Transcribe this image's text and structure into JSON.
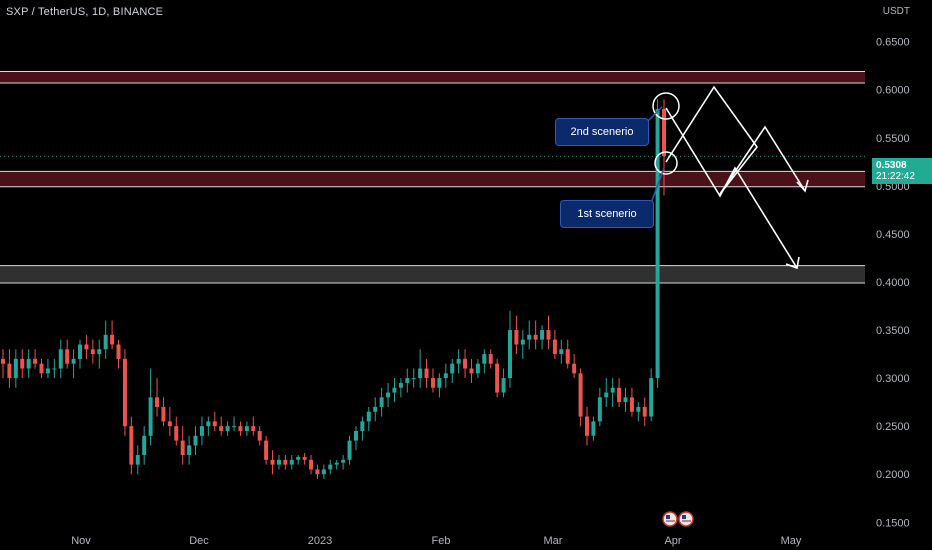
{
  "header": {
    "symbol_line": "SXP / TetherUS, 1D, BINANCE",
    "currency": "USDT"
  },
  "price_tag": {
    "last_price": "0.5308",
    "countdown": "21:22:42"
  },
  "annotations": {
    "scenario_1": "1st scenerio",
    "scenario_2": "2nd scenerio"
  },
  "colors": {
    "up": "#26a69a",
    "down": "#ef5350",
    "resistance_zone": "#4a1218",
    "support_zone": "#303030",
    "callout_bg": "#0b2a6b"
  },
  "icons": [
    "flag-us-icon",
    "flag-us-icon"
  ],
  "chart_data": {
    "type": "candlestick",
    "title": "SXP / TetherUS, 1D, BINANCE",
    "y_axis_labels": [
      "0.6500",
      "0.6000",
      "0.5500",
      "0.5000",
      "0.4500",
      "0.4000",
      "0.3500",
      "0.3000",
      "0.2500",
      "0.2000",
      "0.1500"
    ],
    "x_axis_labels": [
      "Nov",
      "Dec",
      "2023",
      "Feb",
      "Mar",
      "Apr",
      "May"
    ],
    "ylim": [
      0.142,
      0.685
    ],
    "grid": false,
    "zones": [
      {
        "name": "resistance-upper",
        "from": 0.607,
        "to": 0.619
      },
      {
        "name": "resistance-lower",
        "from": 0.499,
        "to": 0.515
      },
      {
        "name": "support",
        "from": 0.399,
        "to": 0.417
      }
    ],
    "last_price": 0.5308,
    "candles": [
      [
        0.32,
        0.33,
        0.3,
        0.315
      ],
      [
        0.315,
        0.33,
        0.29,
        0.3
      ],
      [
        0.3,
        0.33,
        0.29,
        0.32
      ],
      [
        0.32,
        0.33,
        0.3,
        0.31
      ],
      [
        0.31,
        0.33,
        0.3,
        0.32
      ],
      [
        0.32,
        0.33,
        0.31,
        0.315
      ],
      [
        0.315,
        0.32,
        0.3,
        0.305
      ],
      [
        0.305,
        0.32,
        0.3,
        0.31
      ],
      [
        0.31,
        0.32,
        0.3,
        0.31
      ],
      [
        0.31,
        0.34,
        0.3,
        0.33
      ],
      [
        0.33,
        0.34,
        0.31,
        0.315
      ],
      [
        0.315,
        0.33,
        0.3,
        0.32
      ],
      [
        0.32,
        0.34,
        0.31,
        0.335
      ],
      [
        0.335,
        0.345,
        0.32,
        0.33
      ],
      [
        0.33,
        0.34,
        0.315,
        0.325
      ],
      [
        0.325,
        0.34,
        0.31,
        0.33
      ],
      [
        0.33,
        0.36,
        0.32,
        0.345
      ],
      [
        0.345,
        0.36,
        0.33,
        0.335
      ],
      [
        0.335,
        0.34,
        0.31,
        0.32
      ],
      [
        0.32,
        0.33,
        0.24,
        0.25
      ],
      [
        0.25,
        0.26,
        0.2,
        0.21
      ],
      [
        0.21,
        0.23,
        0.2,
        0.22
      ],
      [
        0.22,
        0.25,
        0.21,
        0.24
      ],
      [
        0.24,
        0.31,
        0.23,
        0.28
      ],
      [
        0.28,
        0.3,
        0.26,
        0.27
      ],
      [
        0.27,
        0.28,
        0.25,
        0.255
      ],
      [
        0.255,
        0.27,
        0.24,
        0.25
      ],
      [
        0.25,
        0.26,
        0.23,
        0.235
      ],
      [
        0.235,
        0.25,
        0.21,
        0.22
      ],
      [
        0.22,
        0.24,
        0.21,
        0.23
      ],
      [
        0.23,
        0.25,
        0.22,
        0.24
      ],
      [
        0.24,
        0.26,
        0.23,
        0.25
      ],
      [
        0.25,
        0.26,
        0.24,
        0.255
      ],
      [
        0.255,
        0.265,
        0.245,
        0.25
      ],
      [
        0.25,
        0.26,
        0.24,
        0.245
      ],
      [
        0.245,
        0.255,
        0.24,
        0.25
      ],
      [
        0.25,
        0.26,
        0.245,
        0.25
      ],
      [
        0.25,
        0.255,
        0.24,
        0.245
      ],
      [
        0.245,
        0.255,
        0.24,
        0.25
      ],
      [
        0.25,
        0.26,
        0.24,
        0.245
      ],
      [
        0.245,
        0.25,
        0.23,
        0.235
      ],
      [
        0.235,
        0.24,
        0.21,
        0.215
      ],
      [
        0.215,
        0.225,
        0.2,
        0.21
      ],
      [
        0.21,
        0.22,
        0.205,
        0.215
      ],
      [
        0.215,
        0.22,
        0.205,
        0.21
      ],
      [
        0.21,
        0.22,
        0.205,
        0.215
      ],
      [
        0.215,
        0.22,
        0.21,
        0.218
      ],
      [
        0.218,
        0.222,
        0.21,
        0.215
      ],
      [
        0.215,
        0.22,
        0.2,
        0.205
      ],
      [
        0.205,
        0.21,
        0.195,
        0.2
      ],
      [
        0.2,
        0.21,
        0.195,
        0.205
      ],
      [
        0.205,
        0.215,
        0.2,
        0.21
      ],
      [
        0.21,
        0.215,
        0.205,
        0.212
      ],
      [
        0.212,
        0.22,
        0.205,
        0.215
      ],
      [
        0.215,
        0.24,
        0.21,
        0.235
      ],
      [
        0.235,
        0.25,
        0.225,
        0.245
      ],
      [
        0.245,
        0.26,
        0.235,
        0.255
      ],
      [
        0.255,
        0.27,
        0.245,
        0.265
      ],
      [
        0.265,
        0.28,
        0.255,
        0.27
      ],
      [
        0.27,
        0.29,
        0.26,
        0.28
      ],
      [
        0.28,
        0.295,
        0.27,
        0.285
      ],
      [
        0.285,
        0.3,
        0.275,
        0.29
      ],
      [
        0.29,
        0.3,
        0.28,
        0.295
      ],
      [
        0.295,
        0.31,
        0.285,
        0.3
      ],
      [
        0.3,
        0.31,
        0.29,
        0.3
      ],
      [
        0.3,
        0.33,
        0.29,
        0.31
      ],
      [
        0.31,
        0.32,
        0.29,
        0.3
      ],
      [
        0.3,
        0.31,
        0.285,
        0.29
      ],
      [
        0.29,
        0.305,
        0.28,
        0.3
      ],
      [
        0.3,
        0.315,
        0.29,
        0.305
      ],
      [
        0.305,
        0.32,
        0.295,
        0.315
      ],
      [
        0.315,
        0.33,
        0.305,
        0.32
      ],
      [
        0.32,
        0.33,
        0.3,
        0.31
      ],
      [
        0.31,
        0.32,
        0.295,
        0.305
      ],
      [
        0.305,
        0.32,
        0.3,
        0.315
      ],
      [
        0.315,
        0.33,
        0.305,
        0.325
      ],
      [
        0.325,
        0.33,
        0.31,
        0.315
      ],
      [
        0.315,
        0.32,
        0.28,
        0.285
      ],
      [
        0.285,
        0.31,
        0.28,
        0.3
      ],
      [
        0.3,
        0.37,
        0.29,
        0.35
      ],
      [
        0.35,
        0.365,
        0.325,
        0.335
      ],
      [
        0.335,
        0.35,
        0.32,
        0.34
      ],
      [
        0.34,
        0.36,
        0.33,
        0.345
      ],
      [
        0.345,
        0.36,
        0.33,
        0.34
      ],
      [
        0.34,
        0.355,
        0.33,
        0.35
      ],
      [
        0.35,
        0.365,
        0.33,
        0.34
      ],
      [
        0.34,
        0.35,
        0.32,
        0.325
      ],
      [
        0.325,
        0.34,
        0.315,
        0.33
      ],
      [
        0.33,
        0.34,
        0.31,
        0.315
      ],
      [
        0.315,
        0.325,
        0.3,
        0.305
      ],
      [
        0.305,
        0.31,
        0.25,
        0.26
      ],
      [
        0.26,
        0.27,
        0.23,
        0.24
      ],
      [
        0.24,
        0.26,
        0.235,
        0.255
      ],
      [
        0.255,
        0.29,
        0.25,
        0.28
      ],
      [
        0.28,
        0.3,
        0.27,
        0.285
      ],
      [
        0.285,
        0.3,
        0.27,
        0.29
      ],
      [
        0.29,
        0.3,
        0.27,
        0.275
      ],
      [
        0.275,
        0.29,
        0.265,
        0.28
      ],
      [
        0.28,
        0.29,
        0.26,
        0.265
      ],
      [
        0.265,
        0.275,
        0.255,
        0.27
      ],
      [
        0.27,
        0.28,
        0.25,
        0.26
      ],
      [
        0.26,
        0.31,
        0.255,
        0.3
      ],
      [
        0.3,
        0.59,
        0.29,
        0.58
      ],
      [
        0.58,
        0.59,
        0.49,
        0.5308
      ]
    ]
  }
}
